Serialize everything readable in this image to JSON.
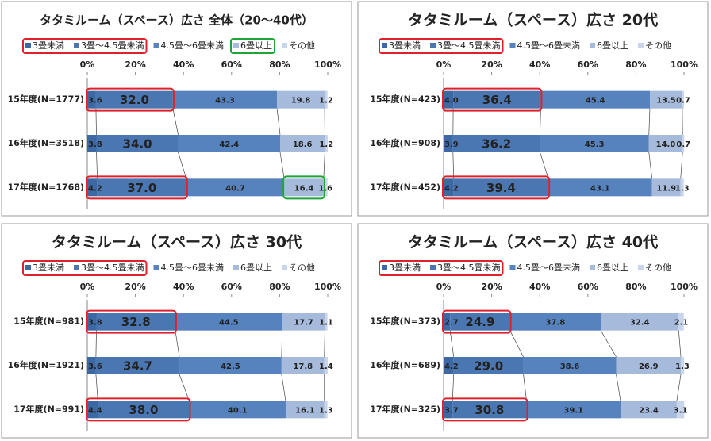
{
  "chart_data": [
    {
      "type": "bar",
      "title": "タタミルーム（スペース）広さ 全体（20～40代）",
      "categories": [
        "15年度(N=1777)",
        "16年度(N=3518)",
        "17年度(N=1768)"
      ],
      "xlim": [
        0,
        100
      ],
      "xticks": [
        {
          "value": 0,
          "label": "0%"
        },
        {
          "value": 20,
          "label": "20%"
        },
        {
          "value": 40,
          "label": "40%"
        },
        {
          "value": 60,
          "label": "60%"
        },
        {
          "value": 80,
          "label": "80%"
        },
        {
          "value": 100,
          "label": "100%"
        }
      ],
      "series": [
        {
          "name": "3畳未満",
          "color": "#3c68a3",
          "values": [
            3.6,
            3.8,
            4.2
          ],
          "value_labels": [
            "3.6",
            "3.8",
            "4.2"
          ]
        },
        {
          "name": "3畳～4.5畳未満",
          "color": "#4a76b2",
          "values": [
            32.0,
            34.0,
            37.0
          ],
          "value_labels": [
            "32.0",
            "34.0",
            "37.0"
          ]
        },
        {
          "name": "4.5畳～6畳未満",
          "color": "#5682bd",
          "values": [
            43.3,
            42.4,
            40.7
          ],
          "value_labels": [
            "43.3",
            "42.4",
            "40.7"
          ]
        },
        {
          "name": "6畳以上",
          "color": "#a6badb",
          "values": [
            19.8,
            18.6,
            16.4
          ],
          "value_labels": [
            "19.8",
            "18.6",
            "16.4"
          ]
        },
        {
          "name": "その他",
          "color": "#c8d5eb",
          "values": [
            1.2,
            1.2,
            1.6
          ],
          "value_labels": [
            "1.2",
            "1.2",
            "1.6"
          ]
        }
      ]
    },
    {
      "type": "bar",
      "title": "タタミルーム（スペース）広さ 20代",
      "categories": [
        "15年度(N=423)",
        "16年度(N=908)",
        "17年度(N=452)"
      ],
      "xlim": [
        0,
        100
      ],
      "xticks": [
        {
          "value": 0,
          "label": "0%"
        },
        {
          "value": 20,
          "label": "20%"
        },
        {
          "value": 40,
          "label": "40%"
        },
        {
          "value": 60,
          "label": "60%"
        },
        {
          "value": 80,
          "label": "80%"
        },
        {
          "value": 100,
          "label": "100%"
        }
      ],
      "series": [
        {
          "name": "3畳未満",
          "color": "#3c68a3",
          "values": [
            4.0,
            3.9,
            4.2
          ],
          "value_labels": [
            "4.0",
            "3.9",
            "4.2"
          ]
        },
        {
          "name": "3畳～4.5畳未満",
          "color": "#4a76b2",
          "values": [
            36.4,
            36.2,
            39.4
          ],
          "value_labels": [
            "36.4",
            "36.2",
            "39.4"
          ]
        },
        {
          "name": "4.5畳～6畳未満",
          "color": "#5682bd",
          "values": [
            45.4,
            45.3,
            43.1
          ],
          "value_labels": [
            "45.4",
            "45.3",
            "43.1"
          ]
        },
        {
          "name": "6畳以上",
          "color": "#a6badb",
          "values": [
            13.5,
            14.0,
            11.9
          ],
          "value_labels": [
            "13.5",
            "14.0",
            "11.9"
          ]
        },
        {
          "name": "その他",
          "color": "#c8d5eb",
          "values": [
            0.7,
            0.7,
            1.3
          ],
          "value_labels": [
            "0.7",
            "0.7",
            "1.3"
          ]
        }
      ]
    },
    {
      "type": "bar",
      "title": "タタミルーム（スペース）広さ 30代",
      "categories": [
        "15年度(N=981)",
        "16年度(N=1921)",
        "17年度(N=991)"
      ],
      "xlim": [
        0,
        100
      ],
      "xticks": [
        {
          "value": 0,
          "label": "0%"
        },
        {
          "value": 20,
          "label": "20%"
        },
        {
          "value": 40,
          "label": "40%"
        },
        {
          "value": 60,
          "label": "60%"
        },
        {
          "value": 80,
          "label": "80%"
        },
        {
          "value": 100,
          "label": "100%"
        }
      ],
      "series": [
        {
          "name": "3畳未満",
          "color": "#3c68a3",
          "values": [
            3.8,
            3.6,
            4.4
          ],
          "value_labels": [
            "3.8",
            "3.6",
            "4.4"
          ]
        },
        {
          "name": "3畳～4.5畳未満",
          "color": "#4a76b2",
          "values": [
            32.8,
            34.7,
            38.0
          ],
          "value_labels": [
            "32.8",
            "34.7",
            "38.0"
          ]
        },
        {
          "name": "4.5畳～6畳未満",
          "color": "#5682bd",
          "values": [
            44.5,
            42.5,
            40.1
          ],
          "value_labels": [
            "44.5",
            "42.5",
            "40.1"
          ]
        },
        {
          "name": "6畳以上",
          "color": "#a6badb",
          "values": [
            17.7,
            17.8,
            16.1
          ],
          "value_labels": [
            "17.7",
            "17.8",
            "16.1"
          ]
        },
        {
          "name": "その他",
          "color": "#c8d5eb",
          "values": [
            1.1,
            1.4,
            1.3
          ],
          "value_labels": [
            "1.1",
            "1.4",
            "1.3"
          ]
        }
      ]
    },
    {
      "type": "bar",
      "title": "タタミルーム（スペース）広さ 40代",
      "categories": [
        "15年度(N=373)",
        "16年度(N=689)",
        "17年度(N=325)"
      ],
      "xlim": [
        0,
        100
      ],
      "xticks": [
        {
          "value": 0,
          "label": "0%"
        },
        {
          "value": 20,
          "label": "20%"
        },
        {
          "value": 40,
          "label": "40%"
        },
        {
          "value": 60,
          "label": "60%"
        },
        {
          "value": 80,
          "label": "80%"
        },
        {
          "value": 100,
          "label": "100%"
        }
      ],
      "series": [
        {
          "name": "3畳未満",
          "color": "#3c68a3",
          "values": [
            2.7,
            4.2,
            3.7
          ],
          "value_labels": [
            "2.7",
            "4.2",
            "3.7"
          ]
        },
        {
          "name": "3畳～4.5畳未満",
          "color": "#4a76b2",
          "values": [
            24.9,
            29.0,
            30.8
          ],
          "value_labels": [
            "24.9",
            "29.0",
            "30.8"
          ]
        },
        {
          "name": "4.5畳～6畳未満",
          "color": "#5682bd",
          "values": [
            37.8,
            38.6,
            39.1
          ],
          "value_labels": [
            "37.8",
            "38.6",
            "39.1"
          ]
        },
        {
          "name": "6畳以上",
          "color": "#a6badb",
          "values": [
            32.4,
            26.9,
            23.4
          ],
          "value_labels": [
            "32.4",
            "26.9",
            "23.4"
          ]
        },
        {
          "name": "その他",
          "color": "#c8d5eb",
          "values": [
            2.1,
            1.3,
            3.1
          ],
          "value_labels": [
            "2.1",
            "1.3",
            "3.1"
          ]
        }
      ]
    }
  ]
}
